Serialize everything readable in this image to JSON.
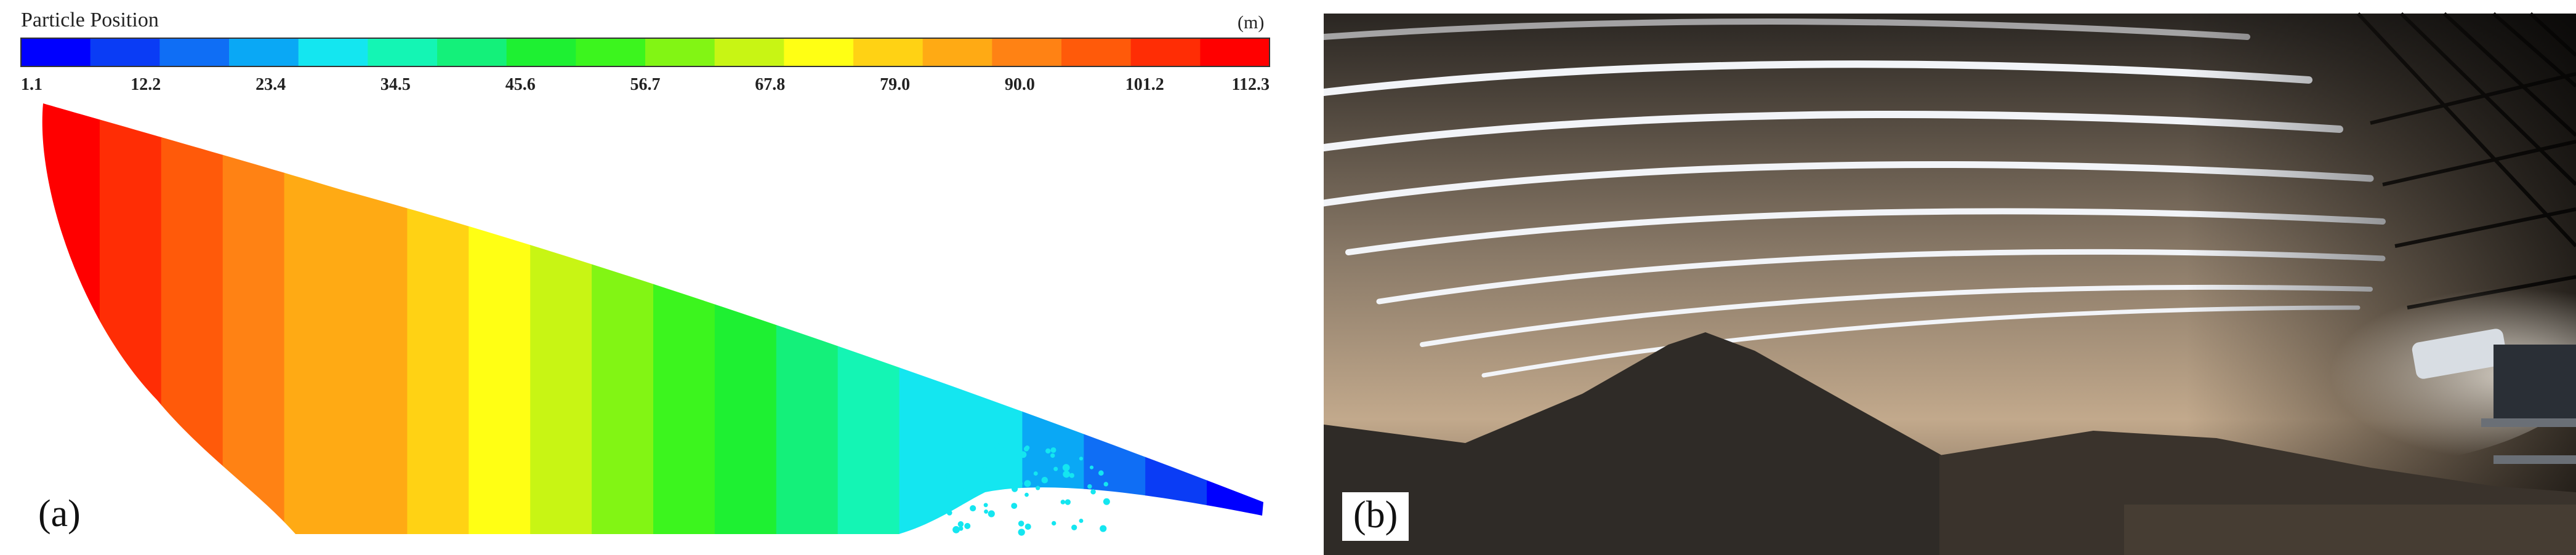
{
  "panel_a": {
    "label": "(a)",
    "chart_data": {
      "type": "heatmap",
      "title": "Particle Position",
      "unit": "(m)",
      "colorbar": {
        "ticks": [
          "1.1",
          "12.2",
          "23.4",
          "34.5",
          "45.6",
          "56.7",
          "67.8",
          "79.0",
          "90.0",
          "101.2",
          "112.3"
        ],
        "min": 1.1,
        "max": 112.3,
        "colors": [
          "#0000ff",
          "#0a3cf5",
          "#0f6ef5",
          "#0aa8f5",
          "#14e6f0",
          "#14f5b4",
          "#14f07a",
          "#1ef032",
          "#3cf51e",
          "#82f514",
          "#c8f514",
          "#ffff14",
          "#ffd214",
          "#ffaa14",
          "#ff8214",
          "#ff5a0a",
          "#ff2d05",
          "#ff0000"
        ]
      },
      "description_bands": 20
    }
  },
  "panel_b": {
    "label": "(b)"
  }
}
